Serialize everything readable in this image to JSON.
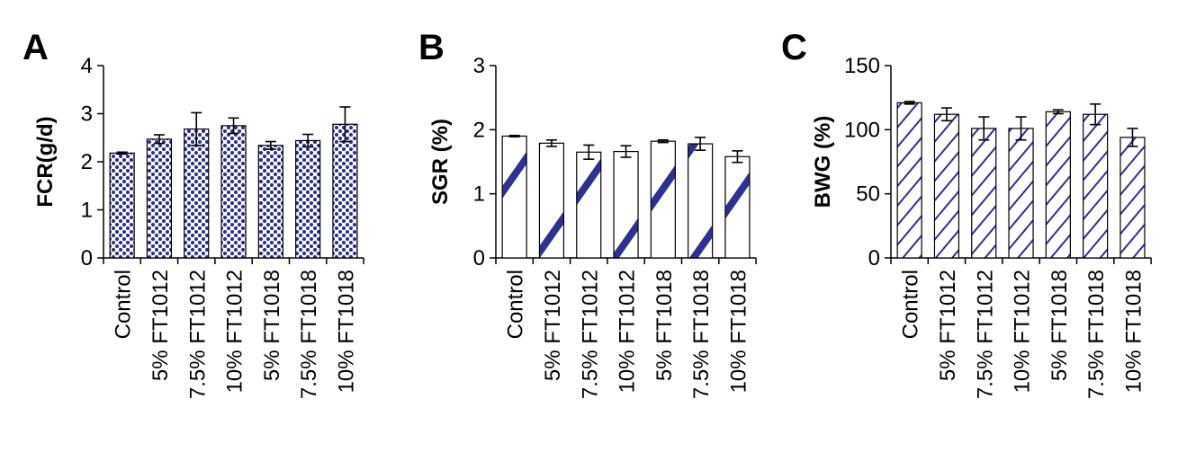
{
  "panel_labels": [
    "A",
    "B",
    "C"
  ],
  "colors": {
    "fill": "#2e3192",
    "axis": "#000000",
    "bar_stroke": "#000000",
    "background": "#ffffff"
  },
  "chart_data": [
    {
      "type": "bar",
      "panel": "A",
      "pattern": "dots",
      "ylabel": "FCR(g/d)",
      "xlabel": "",
      "categories": [
        "Control",
        "5% FT1012",
        "7.5% FT1012",
        "10% FT1012",
        "5% FT1018",
        "7.5% FT1018",
        "10% FT1018"
      ],
      "values": [
        2.18,
        2.47,
        2.68,
        2.75,
        2.34,
        2.44,
        2.78
      ],
      "errors": [
        0.02,
        0.09,
        0.34,
        0.16,
        0.08,
        0.13,
        0.36
      ],
      "ylim": [
        0,
        4
      ],
      "yticks": [
        0,
        1,
        2,
        3,
        4
      ],
      "grid": false
    },
    {
      "type": "bar",
      "panel": "B",
      "pattern": "wide-diagonal",
      "ylabel": "SGR (%)",
      "xlabel": "",
      "categories": [
        "Control",
        "5% FT1012",
        "7.5% FT1012",
        "10% FT1012",
        "5% FT1018",
        "7.5% FT1018",
        "10% FT1018"
      ],
      "values": [
        1.9,
        1.79,
        1.65,
        1.66,
        1.82,
        1.78,
        1.58
      ],
      "errors": [
        0.01,
        0.05,
        0.11,
        0.09,
        0.02,
        0.1,
        0.09
      ],
      "ylim": [
        0,
        3
      ],
      "yticks": [
        0,
        1,
        2,
        3
      ],
      "grid": false
    },
    {
      "type": "bar",
      "panel": "C",
      "pattern": "thin-diagonal",
      "ylabel": "BWG (%)",
      "xlabel": "",
      "categories": [
        "Control",
        "5% FT1012",
        "7.5% FT1012",
        "10% FT1012",
        "5% FT1018",
        "7.5% FT1018",
        "10% FT1018"
      ],
      "values": [
        121,
        112,
        101,
        101,
        114,
        112,
        94
      ],
      "errors": [
        1,
        5,
        9,
        9,
        1.5,
        8,
        7
      ],
      "ylim": [
        0,
        150
      ],
      "yticks": [
        0,
        50,
        100,
        150
      ],
      "grid": false
    }
  ]
}
